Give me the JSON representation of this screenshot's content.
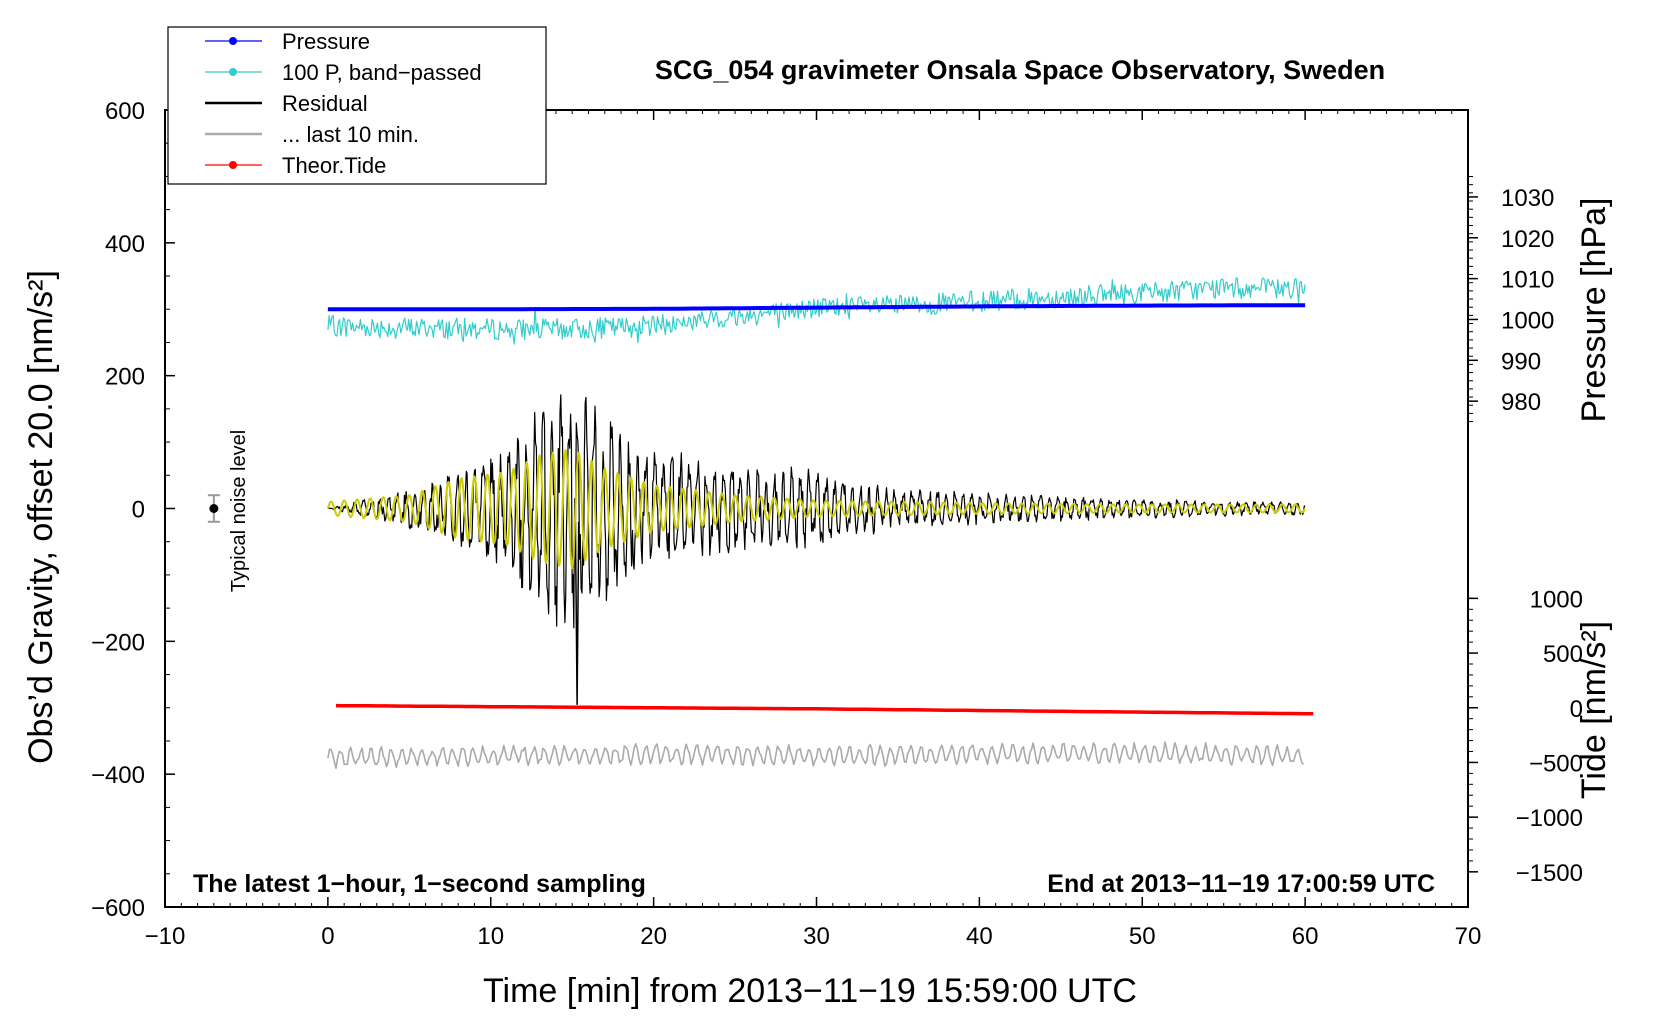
{
  "chart_data": {
    "type": "line",
    "title": "SCG_054 gravimeter Onsala Space Observatory, Sweden",
    "xlabel": "Time [min] from 2013−11−19 15:59:00 UTC",
    "ylabel_left": "Obs’d Gravity, offset 20.0 [nm/s²]",
    "ylabel_right_top": "Pressure [hPa]",
    "ylabel_right_bottom": "Tide [nm/s²]",
    "note_left": "The latest 1−hour, 1−second sampling",
    "note_right": "End at 2013−11−19 17:00:59 UTC",
    "noise_label": "Typical noise level",
    "xlim": [
      -10,
      70
    ],
    "ylim": [
      -600,
      600
    ],
    "pressure_lim": [
      970,
      1035
    ],
    "tide_lim": [
      -1500,
      1500
    ],
    "x_ticks": [
      {
        "v": -10,
        "t": "−10"
      },
      {
        "v": 0,
        "t": "0"
      },
      {
        "v": 10,
        "t": "10"
      },
      {
        "v": 20,
        "t": "20"
      },
      {
        "v": 30,
        "t": "30"
      },
      {
        "v": 40,
        "t": "40"
      },
      {
        "v": 50,
        "t": "50"
      },
      {
        "v": 60,
        "t": "60"
      },
      {
        "v": 70,
        "t": "70"
      }
    ],
    "y_ticks": [
      {
        "v": 600,
        "t": "600"
      },
      {
        "v": 400,
        "t": "400"
      },
      {
        "v": 200,
        "t": "200"
      },
      {
        "v": 0,
        "t": "0"
      },
      {
        "v": -200,
        "t": "−200"
      },
      {
        "v": -400,
        "t": "−400"
      },
      {
        "v": -600,
        "t": "−600"
      }
    ],
    "pressure_ticks": [
      {
        "v": 980,
        "t": "980"
      },
      {
        "v": 990,
        "t": "990"
      },
      {
        "v": 1000,
        "t": "1000"
      },
      {
        "v": 1010,
        "t": "1010"
      },
      {
        "v": 1020,
        "t": "1020"
      },
      {
        "v": 1030,
        "t": "1030"
      }
    ],
    "tide_ticks": [
      {
        "v": 1000,
        "t": "1000"
      },
      {
        "v": 500,
        "t": "500"
      },
      {
        "v": 0,
        "t": "0"
      },
      {
        "v": -500,
        "t": "−500"
      },
      {
        "v": -1000,
        "t": "−1000"
      },
      {
        "v": -1500,
        "t": "−1500"
      }
    ],
    "legend": [
      {
        "name": "Pressure",
        "color": "#0000ff",
        "marker": true
      },
      {
        "name": "100 P, band−passed",
        "color": "#33cccc",
        "marker": true
      },
      {
        "name": "Residual",
        "color": "#000000",
        "marker": false
      },
      {
        "name": "... last 10 min.",
        "color": "#aaaaaa",
        "marker": false
      },
      {
        "name": "Theor.Tide",
        "color": "#ff0000",
        "marker": true
      }
    ],
    "series": [
      {
        "name": "Pressure",
        "axis": "pressure",
        "color": "#0000ff",
        "x": [
          0,
          10,
          20,
          30,
          40,
          50,
          60
        ],
        "values": [
          1002.5,
          1002.5,
          1002.6,
          1002.9,
          1003.2,
          1003.4,
          1003.5
        ]
      },
      {
        "name": "100 P, band−passed",
        "axis": "gravity",
        "color": "#33cccc",
        "x": [
          0,
          5,
          10,
          15,
          20,
          25,
          30,
          35,
          40,
          45,
          50,
          55,
          60
        ],
        "values": [
          275,
          272,
          270,
          270,
          275,
          288,
          302,
          305,
          312,
          318,
          325,
          332,
          330
        ]
      },
      {
        "name": "Residual",
        "axis": "gravity",
        "color": "#000000",
        "x": [
          0,
          5,
          10,
          13,
          15,
          17,
          20,
          25,
          30,
          35,
          40,
          45,
          50,
          55,
          60
        ],
        "values": [
          0,
          30,
          80,
          180,
          190,
          150,
          100,
          70,
          60,
          30,
          25,
          20,
          15,
          12,
          10
        ]
      },
      {
        "name": "... last 10 min.",
        "axis": "gravity",
        "color": "#aaaaaa",
        "x": [
          0,
          10,
          20,
          30,
          40,
          50,
          60
        ],
        "values": [
          -375,
          -372,
          -370,
          -372,
          -370,
          -368,
          -372
        ]
      },
      {
        "name": "Theor.Tide",
        "axis": "tide",
        "color": "#ff0000",
        "x": [
          0,
          10,
          20,
          30,
          40,
          50,
          60.5
        ],
        "values": [
          20,
          10,
          0,
          -10,
          -25,
          -40,
          -55
        ]
      }
    ],
    "noise_point": {
      "x": -7,
      "y": 0,
      "err": 20
    }
  }
}
